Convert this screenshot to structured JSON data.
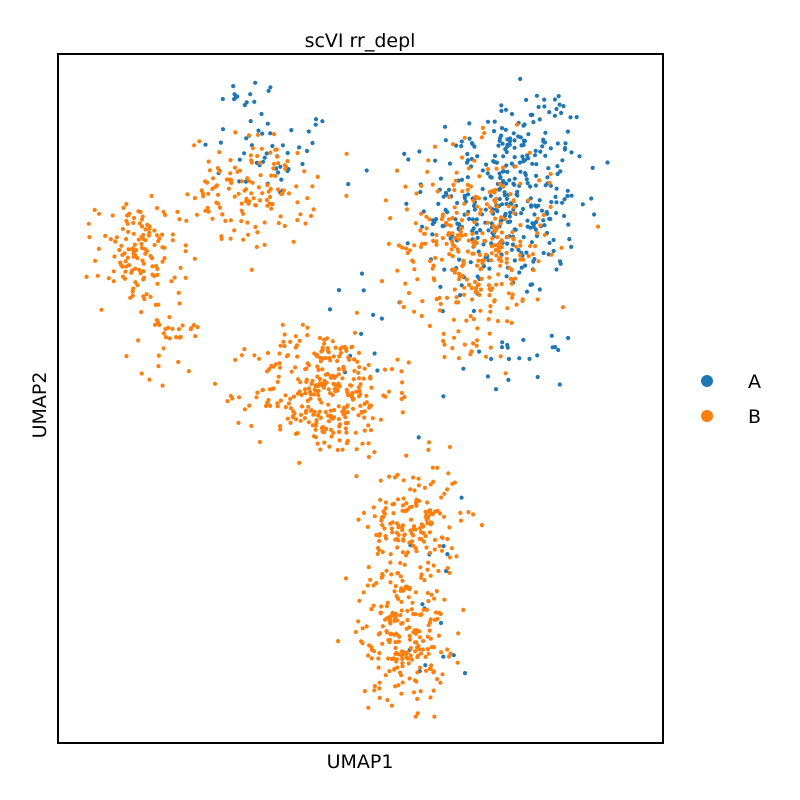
{
  "chart_data": {
    "type": "scatter",
    "title": "scVI rr_depl",
    "xlabel": "UMAP1",
    "ylabel": "UMAP2",
    "ticks_shown": false,
    "grid": false,
    "legend_position": "right",
    "series": [
      {
        "name": "A",
        "color": "#1f77b4",
        "clusters": [
          {
            "center": [
              3.5,
              8.55
            ],
            "spread": [
              1.05,
              0.6
            ],
            "count": 45
          },
          {
            "center": [
              3.3,
              9.35
            ],
            "spread": [
              0.55,
              0.25
            ],
            "count": 14
          },
          {
            "center": [
              7.35,
              7.8
            ],
            "spread": [
              1.15,
              1.2
            ],
            "count": 310
          },
          {
            "center": [
              7.7,
              8.8
            ],
            "spread": [
              0.9,
              0.6
            ],
            "count": 60
          },
          {
            "center": [
              7.6,
              5.55
            ],
            "spread": [
              0.7,
              0.3
            ],
            "count": 22
          },
          {
            "center": [
              5.2,
              6.0
            ],
            "spread": [
              0.8,
              0.7
            ],
            "count": 12
          },
          {
            "center": [
              6.3,
              2.3
            ],
            "spread": [
              0.9,
              2.1
            ],
            "count": 16
          }
        ]
      },
      {
        "name": "B",
        "color": "#ff7f0e",
        "clusters": [
          {
            "center": [
              3.2,
              8.0
            ],
            "spread": [
              0.95,
              0.75
            ],
            "count": 140
          },
          {
            "center": [
              1.3,
              7.1
            ],
            "spread": [
              0.6,
              0.7
            ],
            "count": 130
          },
          {
            "center": [
              1.9,
              6.0
            ],
            "spread": [
              0.45,
              0.6
            ],
            "count": 35
          },
          {
            "center": [
              4.4,
              5.1
            ],
            "spread": [
              1.05,
              0.85
            ],
            "count": 320
          },
          {
            "center": [
              6.9,
              7.2
            ],
            "spread": [
              1.15,
              1.25
            ],
            "count": 320
          },
          {
            "center": [
              5.9,
              3.2
            ],
            "spread": [
              0.7,
              0.8
            ],
            "count": 170
          },
          {
            "center": [
              5.7,
              1.6
            ],
            "spread": [
              0.65,
              0.9
            ],
            "count": 220
          }
        ]
      }
    ]
  }
}
